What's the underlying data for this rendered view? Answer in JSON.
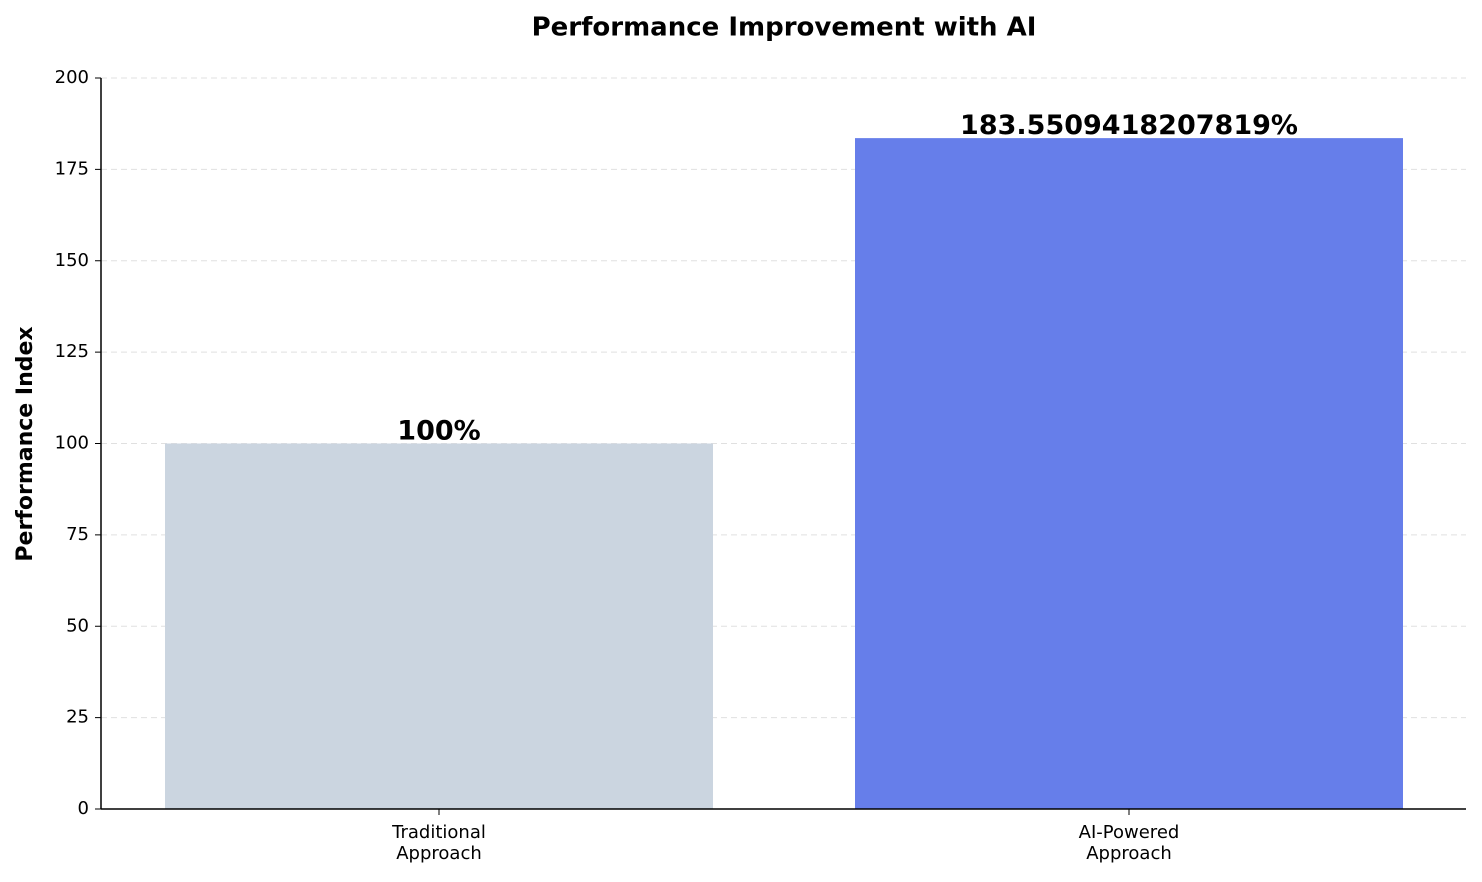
{
  "chart_data": {
    "type": "bar",
    "title": "Performance Improvement with AI",
    "y_label": "Performance Index",
    "categories": [
      "Traditional\nApproach",
      "AI-Powered\nApproach"
    ],
    "values": [
      100,
      183.5509418207819
    ],
    "value_labels": [
      "100%",
      "183.5509418207819%"
    ],
    "colors": [
      "#cbd5e0",
      "#667eea"
    ],
    "ylim": [
      0,
      200
    ],
    "yticks": [
      0,
      25,
      50,
      75,
      100,
      125,
      150,
      175,
      200
    ],
    "grid": true
  }
}
